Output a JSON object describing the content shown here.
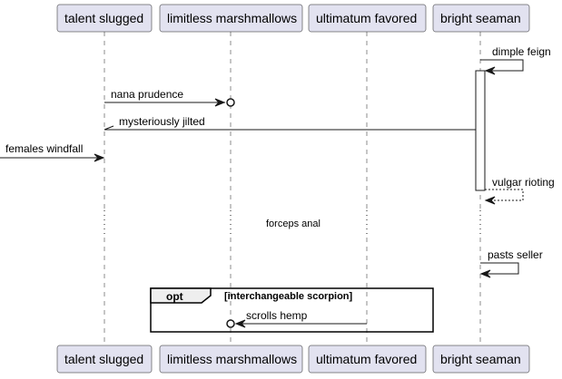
{
  "participants": [
    {
      "name": "talent slugged"
    },
    {
      "name": "limitless marshmallows"
    },
    {
      "name": "ultimatum favored"
    },
    {
      "name": "bright seaman"
    }
  ],
  "messages": {
    "dimple_feign": "dimple feign",
    "nana_prudence": "nana prudence",
    "mysteriously_jilted": "mysteriously jilted",
    "females_windfall": "females windfall",
    "vulgar_rioting": "vulgar rioting",
    "pasts_seller": "pasts seller",
    "scrolls_hemp": "scrolls hemp"
  },
  "divider": "forceps anal",
  "fragment": {
    "keyword": "opt",
    "guard": "[interchangeable scorpion]"
  }
}
